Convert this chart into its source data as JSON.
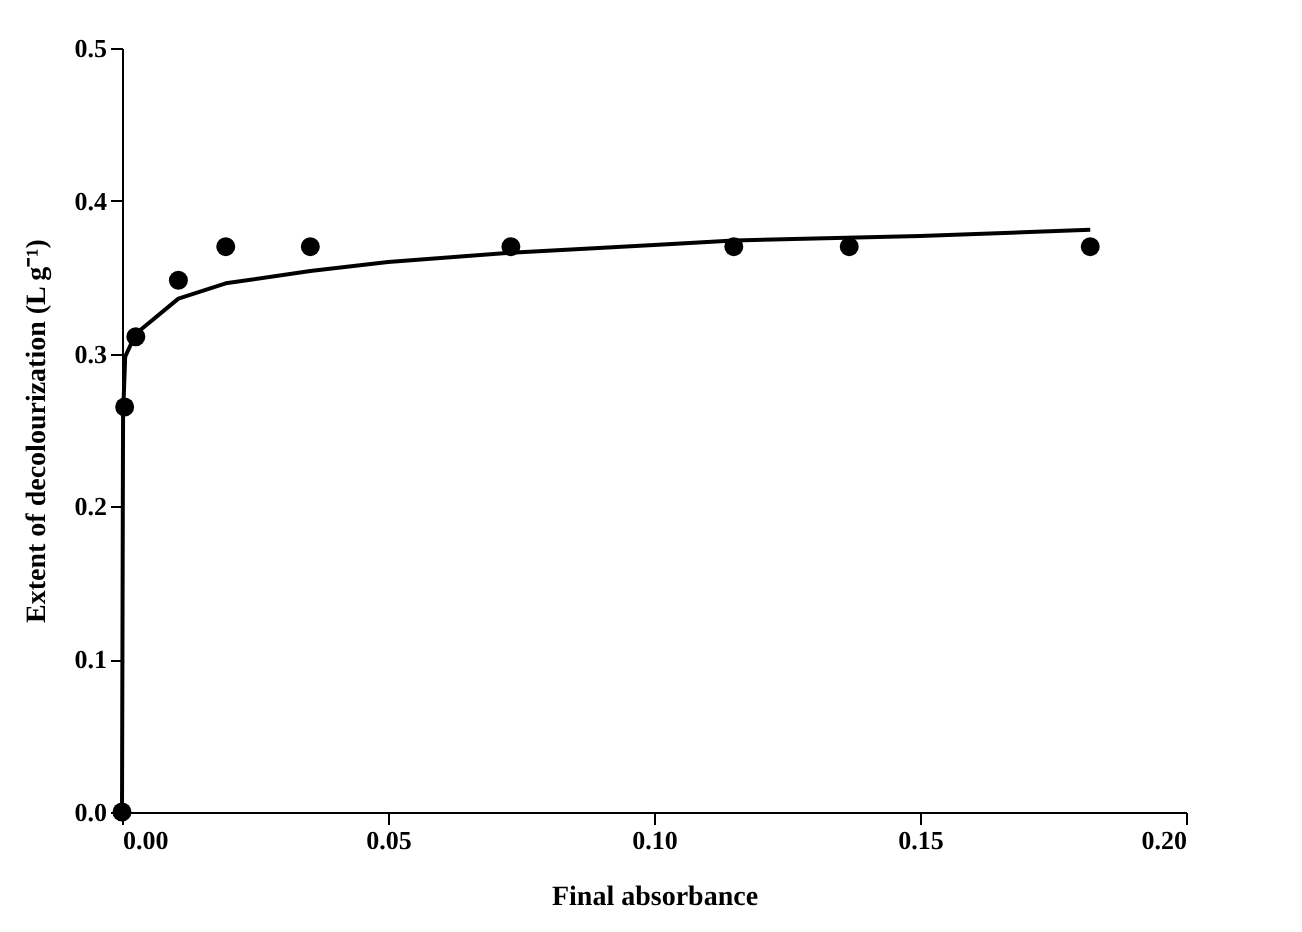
{
  "chart_data": {
    "type": "scatter",
    "xlabel": "Final absorbance",
    "ylabel": "Extent of decolourization (L g⁻¹)",
    "xlim": [
      0,
      0.2
    ],
    "ylim": [
      0,
      0.5
    ],
    "xticks": [
      {
        "value": 0,
        "label": "0.00"
      },
      {
        "value": 0.05,
        "label": "0.05"
      },
      {
        "value": 0.1,
        "label": "0.10"
      },
      {
        "value": 0.15,
        "label": "0.15"
      },
      {
        "value": 0.2,
        "label": "0.20"
      }
    ],
    "yticks": [
      {
        "value": 0,
        "label": "0.0"
      },
      {
        "value": 0.1,
        "label": "0.1"
      },
      {
        "value": 0.2,
        "label": "0.2"
      },
      {
        "value": 0.3,
        "label": "0.3"
      },
      {
        "value": 0.4,
        "label": "0.4"
      },
      {
        "value": 0.5,
        "label": "0.5"
      }
    ],
    "grid": false,
    "marker": "circle",
    "series": [
      {
        "color": "#000000",
        "x": [
          0,
          0.0005,
          0.0026,
          0.0106,
          0.0195,
          0.0354,
          0.0731,
          0.115,
          0.1367,
          0.182
        ],
        "values": [
          0,
          0.265,
          0.311,
          0.348,
          0.37,
          0.37,
          0.37,
          0.37,
          0.37,
          0.37
        ]
      },
      {
        "type": "line",
        "color": "#000000",
        "line_style": "solid",
        "marker": "none",
        "x": [
          0,
          0.0002,
          0.0006,
          0.0026,
          0.0106,
          0.0195,
          0.0354,
          0.05,
          0.0731,
          0.1,
          0.115,
          0.15,
          0.182
        ],
        "values": [
          0,
          0.26,
          0.298,
          0.313,
          0.336,
          0.346,
          0.354,
          0.36,
          0.366,
          0.371,
          0.374,
          0.377,
          0.381
        ]
      }
    ]
  }
}
